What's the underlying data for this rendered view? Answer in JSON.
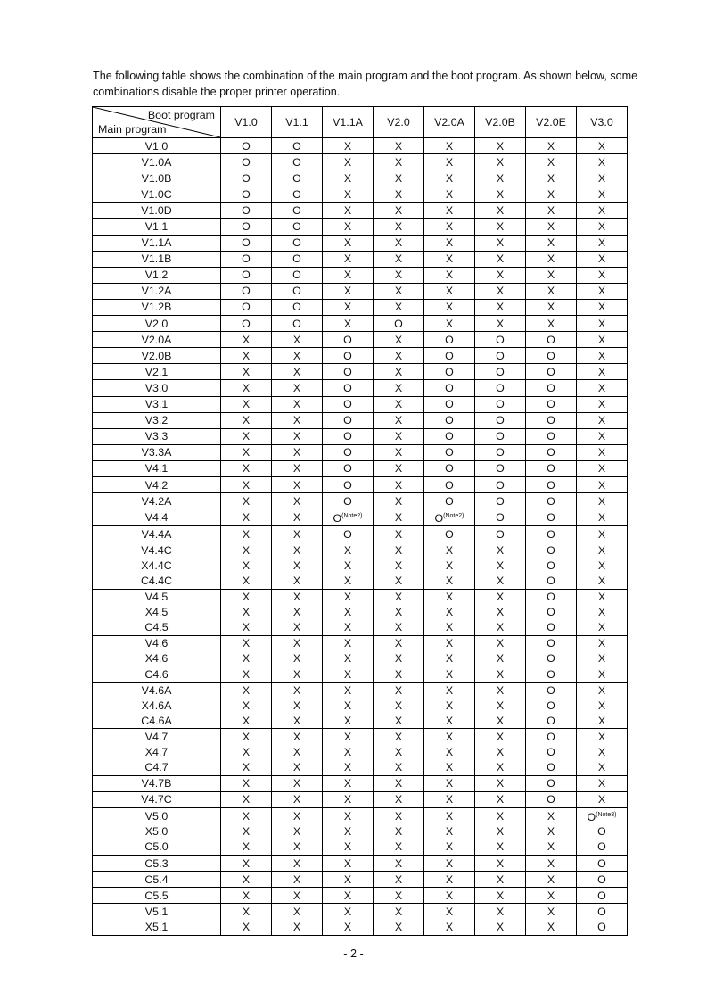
{
  "intro": "The following table shows the combination of the main program and the boot program.  As shown below, some combinations disable the proper printer operation.",
  "table": {
    "corner_top": "Boot program",
    "corner_bottom": "Main program",
    "columns": [
      "V1.0",
      "V1.1",
      "V1.1A",
      "V2.0",
      "V2.0A",
      "V2.0B",
      "V2.0E",
      "V3.0"
    ],
    "groups": [
      [
        {
          "main": "V1.0",
          "cells": [
            "O",
            "O",
            "X",
            "X",
            "X",
            "X",
            "X",
            "X"
          ]
        }
      ],
      [
        {
          "main": "V1.0A",
          "cells": [
            "O",
            "O",
            "X",
            "X",
            "X",
            "X",
            "X",
            "X"
          ]
        }
      ],
      [
        {
          "main": "V1.0B",
          "cells": [
            "O",
            "O",
            "X",
            "X",
            "X",
            "X",
            "X",
            "X"
          ]
        }
      ],
      [
        {
          "main": "V1.0C",
          "cells": [
            "O",
            "O",
            "X",
            "X",
            "X",
            "X",
            "X",
            "X"
          ]
        }
      ],
      [
        {
          "main": "V1.0D",
          "cells": [
            "O",
            "O",
            "X",
            "X",
            "X",
            "X",
            "X",
            "X"
          ]
        }
      ],
      [
        {
          "main": "V1.1",
          "cells": [
            "O",
            "O",
            "X",
            "X",
            "X",
            "X",
            "X",
            "X"
          ]
        }
      ],
      [
        {
          "main": "V1.1A",
          "cells": [
            "O",
            "O",
            "X",
            "X",
            "X",
            "X",
            "X",
            "X"
          ]
        }
      ],
      [
        {
          "main": "V1.1B",
          "cells": [
            "O",
            "O",
            "X",
            "X",
            "X",
            "X",
            "X",
            "X"
          ]
        }
      ],
      [
        {
          "main": "V1.2",
          "cells": [
            "O",
            "O",
            "X",
            "X",
            "X",
            "X",
            "X",
            "X"
          ]
        }
      ],
      [
        {
          "main": "V1.2A",
          "cells": [
            "O",
            "O",
            "X",
            "X",
            "X",
            "X",
            "X",
            "X"
          ]
        }
      ],
      [
        {
          "main": "V1.2B",
          "cells": [
            "O",
            "O",
            "X",
            "X",
            "X",
            "X",
            "X",
            "X"
          ]
        }
      ],
      [
        {
          "main": "V2.0",
          "cells": [
            "O",
            "O",
            "X",
            "O",
            "X",
            "X",
            "X",
            "X"
          ]
        }
      ],
      [
        {
          "main": "V2.0A",
          "cells": [
            "X",
            "X",
            "O",
            "X",
            "O",
            "O",
            "O",
            "X"
          ]
        }
      ],
      [
        {
          "main": "V2.0B",
          "cells": [
            "X",
            "X",
            "O",
            "X",
            "O",
            "O",
            "O",
            "X"
          ]
        }
      ],
      [
        {
          "main": "V2.1",
          "cells": [
            "X",
            "X",
            "O",
            "X",
            "O",
            "O",
            "O",
            "X"
          ]
        }
      ],
      [
        {
          "main": "V3.0",
          "cells": [
            "X",
            "X",
            "O",
            "X",
            "O",
            "O",
            "O",
            "X"
          ]
        }
      ],
      [
        {
          "main": "V3.1",
          "cells": [
            "X",
            "X",
            "O",
            "X",
            "O",
            "O",
            "O",
            "X"
          ]
        }
      ],
      [
        {
          "main": "V3.2",
          "cells": [
            "X",
            "X",
            "O",
            "X",
            "O",
            "O",
            "O",
            "X"
          ]
        }
      ],
      [
        {
          "main": "V3.3",
          "cells": [
            "X",
            "X",
            "O",
            "X",
            "O",
            "O",
            "O",
            "X"
          ]
        }
      ],
      [
        {
          "main": "V3.3A",
          "cells": [
            "X",
            "X",
            "O",
            "X",
            "O",
            "O",
            "O",
            "X"
          ]
        }
      ],
      [
        {
          "main": "V4.1",
          "cells": [
            "X",
            "X",
            "O",
            "X",
            "O",
            "O",
            "O",
            "X"
          ]
        }
      ],
      [
        {
          "main": "V4.2",
          "cells": [
            "X",
            "X",
            "O",
            "X",
            "O",
            "O",
            "O",
            "X"
          ]
        }
      ],
      [
        {
          "main": "V4.2A",
          "cells": [
            "X",
            "X",
            "O",
            "X",
            "O",
            "O",
            "O",
            "X"
          ]
        }
      ],
      [
        {
          "main": "V4.4",
          "cells": [
            "X",
            "X",
            {
              "v": "O",
              "note": "(Note2)"
            },
            "X",
            {
              "v": "O",
              "note": "(Note2)"
            },
            "O",
            "O",
            "X"
          ]
        }
      ],
      [
        {
          "main": "V4.4A",
          "cells": [
            "X",
            "X",
            "O",
            "X",
            "O",
            "O",
            "O",
            "X"
          ]
        }
      ],
      [
        {
          "main": "V4.4C",
          "cells": [
            "X",
            "X",
            "X",
            "X",
            "X",
            "X",
            "O",
            "X"
          ]
        },
        {
          "main": "X4.4C",
          "cells": [
            "X",
            "X",
            "X",
            "X",
            "X",
            "X",
            "O",
            "X"
          ]
        },
        {
          "main": "C4.4C",
          "cells": [
            "X",
            "X",
            "X",
            "X",
            "X",
            "X",
            "O",
            "X"
          ]
        }
      ],
      [
        {
          "main": "V4.5",
          "cells": [
            "X",
            "X",
            "X",
            "X",
            "X",
            "X",
            "O",
            "X"
          ]
        },
        {
          "main": "X4.5",
          "cells": [
            "X",
            "X",
            "X",
            "X",
            "X",
            "X",
            "O",
            "X"
          ]
        },
        {
          "main": "C4.5",
          "cells": [
            "X",
            "X",
            "X",
            "X",
            "X",
            "X",
            "O",
            "X"
          ]
        }
      ],
      [
        {
          "main": "V4.6",
          "cells": [
            "X",
            "X",
            "X",
            "X",
            "X",
            "X",
            "O",
            "X"
          ]
        },
        {
          "main": "X4.6",
          "cells": [
            "X",
            "X",
            "X",
            "X",
            "X",
            "X",
            "O",
            "X"
          ]
        },
        {
          "main": "C4.6",
          "cells": [
            "X",
            "X",
            "X",
            "X",
            "X",
            "X",
            "O",
            "X"
          ]
        }
      ],
      [
        {
          "main": "V4.6A",
          "cells": [
            "X",
            "X",
            "X",
            "X",
            "X",
            "X",
            "O",
            "X"
          ]
        },
        {
          "main": "X4.6A",
          "cells": [
            "X",
            "X",
            "X",
            "X",
            "X",
            "X",
            "O",
            "X"
          ]
        },
        {
          "main": "C4.6A",
          "cells": [
            "X",
            "X",
            "X",
            "X",
            "X",
            "X",
            "O",
            "X"
          ]
        }
      ],
      [
        {
          "main": "V4.7",
          "cells": [
            "X",
            "X",
            "X",
            "X",
            "X",
            "X",
            "O",
            "X"
          ]
        },
        {
          "main": "X4.7",
          "cells": [
            "X",
            "X",
            "X",
            "X",
            "X",
            "X",
            "O",
            "X"
          ]
        },
        {
          "main": "C4.7",
          "cells": [
            "X",
            "X",
            "X",
            "X",
            "X",
            "X",
            "O",
            "X"
          ]
        }
      ],
      [
        {
          "main": "V4.7B",
          "cells": [
            "X",
            "X",
            "X",
            "X",
            "X",
            "X",
            "O",
            "X"
          ]
        }
      ],
      [
        {
          "main": "V4.7C",
          "cells": [
            "X",
            "X",
            "X",
            "X",
            "X",
            "X",
            "O",
            "X"
          ]
        }
      ],
      [
        {
          "main": "V5.0",
          "cells": [
            "X",
            "X",
            "X",
            "X",
            "X",
            "X",
            "X",
            {
              "v": "O",
              "note": "(Note3)"
            }
          ]
        },
        {
          "main": "X5.0",
          "cells": [
            "X",
            "X",
            "X",
            "X",
            "X",
            "X",
            "X",
            "O"
          ]
        },
        {
          "main": "C5.0",
          "cells": [
            "X",
            "X",
            "X",
            "X",
            "X",
            "X",
            "X",
            "O"
          ]
        }
      ],
      [
        {
          "main": "C5.3",
          "cells": [
            "X",
            "X",
            "X",
            "X",
            "X",
            "X",
            "X",
            "O"
          ]
        }
      ],
      [
        {
          "main": "C5.4",
          "cells": [
            "X",
            "X",
            "X",
            "X",
            "X",
            "X",
            "X",
            "O"
          ]
        }
      ],
      [
        {
          "main": "C5.5",
          "cells": [
            "X",
            "X",
            "X",
            "X",
            "X",
            "X",
            "X",
            "O"
          ]
        }
      ],
      [
        {
          "main": "V5.1",
          "cells": [
            "X",
            "X",
            "X",
            "X",
            "X",
            "X",
            "X",
            "O"
          ]
        },
        {
          "main": "X5.1",
          "cells": [
            "X",
            "X",
            "X",
            "X",
            "X",
            "X",
            "X",
            "O"
          ]
        }
      ]
    ]
  },
  "page_number": "- 2 -"
}
